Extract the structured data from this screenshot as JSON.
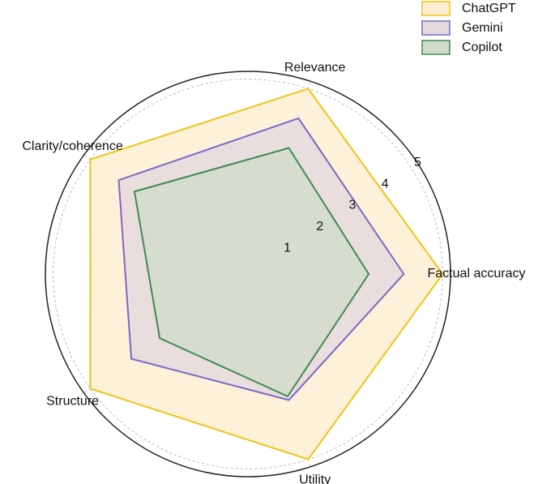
{
  "chart_data": {
    "type": "radar",
    "categories": [
      "Factual accuracy",
      "Relevance",
      "Clarity/coherence",
      "Structure",
      "Utility"
    ],
    "series": [
      {
        "name": "ChatGPT",
        "color": "#f2c318",
        "fill": "#fdeed2",
        "values": [
          5,
          5,
          5,
          5,
          5
        ]
      },
      {
        "name": "Gemini",
        "color": "#7a68c6",
        "fill": "#e5dadd",
        "values": [
          4.0,
          4.2,
          4.1,
          3.7,
          3.4
        ]
      },
      {
        "name": "Copilot",
        "color": "#3f8a55",
        "fill": "#d2dccb",
        "values": [
          3.1,
          3.4,
          3.6,
          2.8,
          3.3
        ]
      }
    ],
    "ylim": [
      0,
      5.2
    ],
    "yticks": [
      1,
      2,
      3,
      4,
      5
    ],
    "grid": true,
    "legend": "upper right"
  }
}
